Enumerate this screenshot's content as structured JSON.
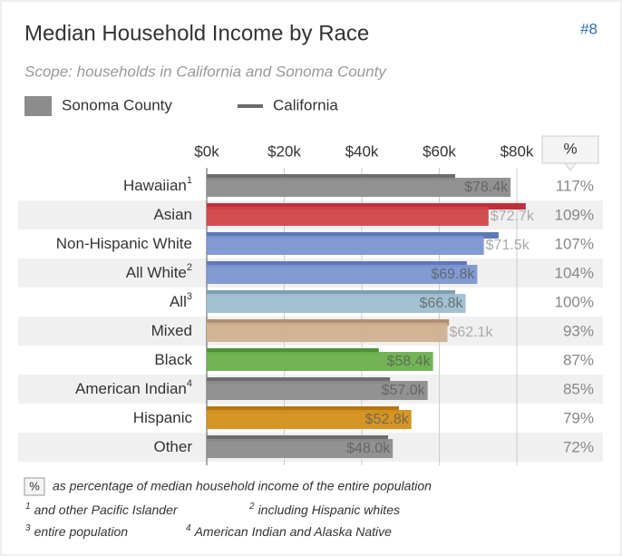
{
  "badge": "#8",
  "chart_data": {
    "type": "bar",
    "title": "Median Household Income by Race",
    "subtitle": "Scope: households in California and Sonoma County",
    "categories": [
      "Hawaiian",
      "Asian",
      "Non-Hispanic White",
      "All White",
      "All",
      "Mixed",
      "Black",
      "American Indian",
      "Hispanic",
      "Other"
    ],
    "category_notes": [
      "1",
      null,
      null,
      "2",
      "3",
      null,
      null,
      "4",
      null,
      null
    ],
    "xlim": [
      0,
      102
    ],
    "xticks": [
      {
        "value": 0,
        "label": "$0k"
      },
      {
        "value": 20,
        "label": "$20k"
      },
      {
        "value": 40,
        "label": "$40k"
      },
      {
        "value": 60,
        "label": "$60k"
      },
      {
        "value": 80,
        "label": "$80k"
      }
    ],
    "grid": true,
    "series": [
      {
        "name": "Sonoma County",
        "color": "#8c8c8c",
        "colors": [
          "#8c8c8c",
          "#d0454a",
          "#7b96d0",
          "#7b96d0",
          "#9dbfcf",
          "#cdb08f",
          "#6ab04c",
          "#8c8c8c",
          "#d4901a",
          "#8c8c8c"
        ],
        "values": [
          78.4,
          72.7,
          71.5,
          69.8,
          66.8,
          62.1,
          58.4,
          57.0,
          52.8,
          48.0
        ],
        "value_labels": [
          "$78.4k",
          "$72.7k",
          "$71.5k",
          "$69.8k",
          "$66.8k",
          "$62.1k",
          "$58.4k",
          "$57.0k",
          "$52.8k",
          "$48.0k"
        ]
      },
      {
        "name": "California",
        "color": "#6b6b6b",
        "colors": [
          "#6d6d6d",
          "#c0303a",
          "#5d78b8",
          "#5d78b8",
          "#7da0b2",
          "#b09070",
          "#4f9235",
          "#6d6d6d",
          "#b57510",
          "#6d6d6d"
        ],
        "values": [
          64.1,
          82.3,
          75.3,
          67.1,
          64.1,
          62.5,
          44.4,
          47.3,
          49.6,
          46.8
        ]
      }
    ],
    "percent": {
      "header": "%",
      "values": [
        117,
        109,
        107,
        104,
        100,
        93,
        87,
        85,
        79,
        72
      ],
      "value_labels": [
        "117%",
        "109%",
        "107%",
        "104%",
        "100%",
        "93%",
        "87%",
        "85%",
        "79%",
        "72%"
      ]
    },
    "footnote_key": {
      "symbol": "%",
      "text": "as percentage of median household income of the entire population"
    },
    "footnotes": [
      {
        "mark": "1",
        "text": "and other Pacific Islander"
      },
      {
        "mark": "2",
        "text": "including Hispanic whites"
      },
      {
        "mark": "3",
        "text": "entire population"
      },
      {
        "mark": "4",
        "text": "American Indian and Alaska Native"
      }
    ]
  }
}
